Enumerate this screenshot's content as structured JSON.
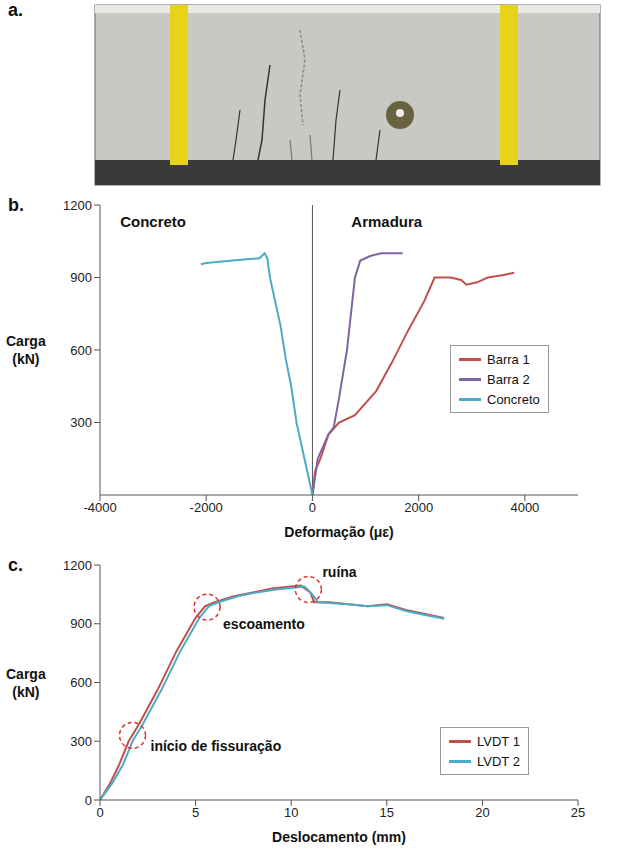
{
  "chart_data": [
    {
      "type": "photo",
      "label": "a."
    },
    {
      "type": "line",
      "label": "b.",
      "x_label": "Deformação (με)",
      "y_label": "Carga (kN)",
      "xlim": [
        -4000,
        5000
      ],
      "xticks": [
        -4000,
        -2000,
        0,
        2000,
        4000
      ],
      "ylim": [
        0,
        1200
      ],
      "yticks": [
        300,
        600,
        900,
        1200
      ],
      "grid": false,
      "legend": "right",
      "annotations": [
        {
          "text": "Concreto",
          "x": -3000,
          "y": 1130
        },
        {
          "text": "Armadura",
          "x": 1400,
          "y": 1130
        }
      ],
      "series": [
        {
          "name": "Barra 1",
          "color": "#c0504d",
          "x": [
            0,
            50,
            150,
            300,
            500,
            800,
            1000,
            1200,
            1500,
            1800,
            2100,
            2300,
            2600,
            2800,
            2900,
            3100,
            3300,
            3600,
            3800
          ],
          "values": [
            0,
            100,
            150,
            250,
            300,
            330,
            380,
            430,
            550,
            680,
            800,
            900,
            900,
            890,
            870,
            880,
            900,
            910,
            920
          ]
        },
        {
          "name": "Barra 2",
          "color": "#8064a2",
          "x": [
            0,
            100,
            300,
            400,
            500,
            650,
            750,
            800,
            900,
            1100,
            1300,
            1700
          ],
          "values": [
            0,
            150,
            250,
            280,
            400,
            600,
            800,
            900,
            970,
            990,
            1000,
            1000
          ]
        },
        {
          "name": "Concreto",
          "color": "#4bacc6",
          "x": [
            0,
            -100,
            -200,
            -300,
            -400,
            -500,
            -600,
            -700,
            -800,
            -850,
            -900,
            -1000,
            -1500,
            -2000,
            -2100
          ],
          "values": [
            0,
            100,
            200,
            300,
            450,
            560,
            700,
            800,
            900,
            980,
            1000,
            980,
            970,
            960,
            955
          ]
        }
      ]
    },
    {
      "type": "line",
      "label": "c.",
      "x_label": "Deslocamento (mm)",
      "y_label": "Carga (kN)",
      "xlim": [
        0,
        25
      ],
      "xticks": [
        0,
        5,
        10,
        15,
        20,
        25
      ],
      "ylim": [
        0,
        1200
      ],
      "yticks": [
        0,
        300,
        600,
        900,
        1200
      ],
      "grid": false,
      "legend": "lower right",
      "annotations": [
        {
          "text": "início de fissuração",
          "x": 1.7,
          "y": 330
        },
        {
          "text": "escoamento",
          "x": 5.6,
          "y": 985
        },
        {
          "text": "ruína",
          "x": 10.9,
          "y": 1075
        }
      ],
      "series": [
        {
          "name": "LVDT 1",
          "color": "#c0504d",
          "x": [
            0,
            0.5,
            1,
            1.5,
            2,
            3,
            4,
            5,
            5.5,
            6,
            7,
            8,
            9,
            10,
            10.5,
            11,
            11.2,
            12,
            13,
            14,
            15,
            16,
            17,
            18
          ],
          "values": [
            0,
            80,
            180,
            300,
            380,
            560,
            760,
            930,
            990,
            1010,
            1040,
            1060,
            1080,
            1090,
            1095,
            1060,
            1010,
            1010,
            1000,
            990,
            1000,
            970,
            950,
            930
          ]
        },
        {
          "name": "LVDT 2",
          "color": "#4bacc6",
          "x": [
            0,
            0.6,
            1.2,
            1.7,
            2.2,
            3.2,
            4.2,
            5.2,
            5.7,
            6.2,
            7.2,
            8.2,
            9.2,
            10.2,
            10.7,
            11.1,
            11.4,
            12.2,
            13,
            14,
            15,
            16,
            17,
            18
          ],
          "values": [
            0,
            80,
            180,
            300,
            380,
            560,
            760,
            930,
            990,
            1010,
            1040,
            1060,
            1075,
            1085,
            1090,
            1050,
            1010,
            1005,
            1000,
            990,
            995,
            965,
            945,
            925
          ]
        }
      ]
    }
  ]
}
